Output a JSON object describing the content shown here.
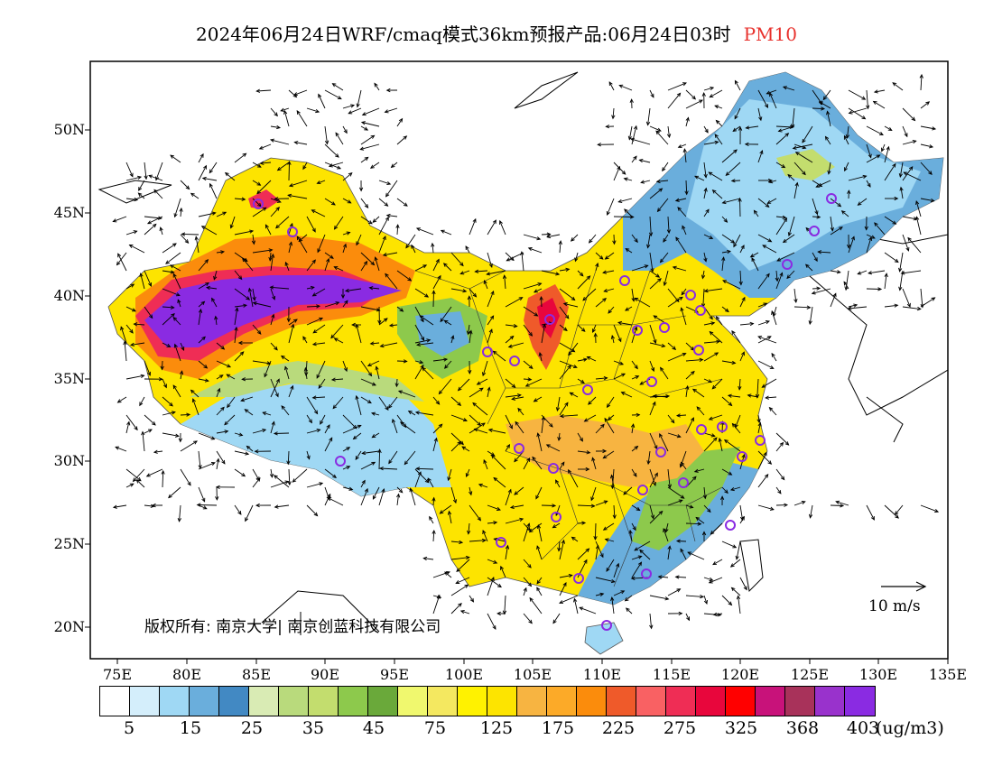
{
  "title": {
    "main": "2024年06月24日WRF/cmaq模式36km预报产品:06月24日03时",
    "variable": "PM10",
    "variable_color": "#e8322d"
  },
  "map": {
    "latitude_labels": [
      "50N",
      "45N",
      "40N",
      "35N",
      "30N",
      "25N",
      "20N"
    ],
    "longitude_labels": [
      "75E",
      "80E",
      "85E",
      "90E",
      "95E",
      "100E",
      "105E",
      "110E",
      "115E",
      "120E",
      "125E",
      "130E",
      "135E"
    ],
    "copyright": "版权所有: 南京大学| 南京创蓝科技有限公司",
    "wind_reference": "10 m/s",
    "station_marker_color": "#8a2be2"
  },
  "colorbar": {
    "colors": [
      "#ffffff",
      "#d4eefb",
      "#9fd8f4",
      "#6aaedc",
      "#4289c3",
      "#d9ebb4",
      "#b9da7c",
      "#c3dd6e",
      "#8dc94c",
      "#6aa93a",
      "#f0f86e",
      "#f4e860",
      "#fff200",
      "#fde400",
      "#f7b441",
      "#fcaa28",
      "#fb8c0c",
      "#ef5a2a",
      "#f96163",
      "#ef2d55",
      "#e8063c",
      "#ff0000",
      "#c8127a",
      "#a8325a",
      "#9932cc",
      "#8a2be2"
    ],
    "tick_labels": [
      "5",
      "15",
      "25",
      "35",
      "45",
      "75",
      "125",
      "175",
      "225",
      "275",
      "325",
      "368",
      "403"
    ],
    "unit": "(ug/m3)"
  }
}
